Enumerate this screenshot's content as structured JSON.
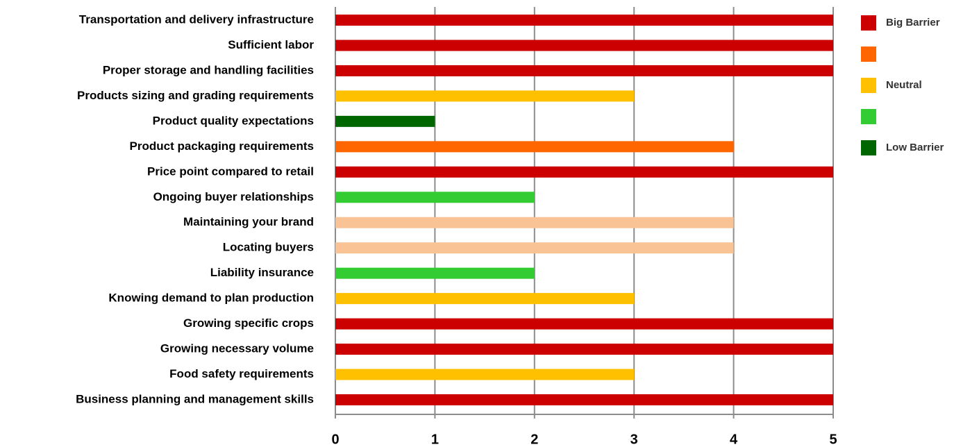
{
  "chart_data": {
    "type": "hbar",
    "categories": [
      "Transportation and delivery infrastructure",
      "Sufficient labor",
      "Proper storage and handling facilities",
      "Products sizing and grading requirements",
      "Product quality expectations",
      "Product packaging requirements",
      "Price point compared to retail",
      "Ongoing buyer relationships",
      "Maintaining your brand",
      "Locating buyers",
      "Liability insurance",
      "Knowing demand to plan production",
      "Growing specific crops",
      "Growing necessary  volume",
      "Food safety requirements",
      "Business planning and management  skills"
    ],
    "values": [
      5,
      5,
      5,
      3,
      1,
      4,
      5,
      2,
      4,
      4,
      2,
      3,
      5,
      5,
      3,
      5
    ],
    "colors": [
      "#cc0000",
      "#cc0000",
      "#cc0000",
      "#ffc000",
      "#006600",
      "#ff6600",
      "#cc0000",
      "#33cc33",
      "#f9c396",
      "#f9c396",
      "#33cc33",
      "#ffc000",
      "#cc0000",
      "#cc0000",
      "#ffc000",
      "#cc0000"
    ],
    "xlim": [
      0,
      5
    ],
    "xticks": [
      0,
      1,
      2,
      3,
      4,
      5
    ],
    "grid": true,
    "legend": [
      {
        "name": "Big Barrier",
        "color": "#cc0000"
      },
      {
        "color": "#ff6600"
      },
      {
        "name": "Neutral",
        "color": "#ffc000"
      },
      {
        "color": "#33cc33"
      },
      {
        "name": "Low Barrier",
        "color": "#006600"
      }
    ],
    "legend_position": "right"
  }
}
